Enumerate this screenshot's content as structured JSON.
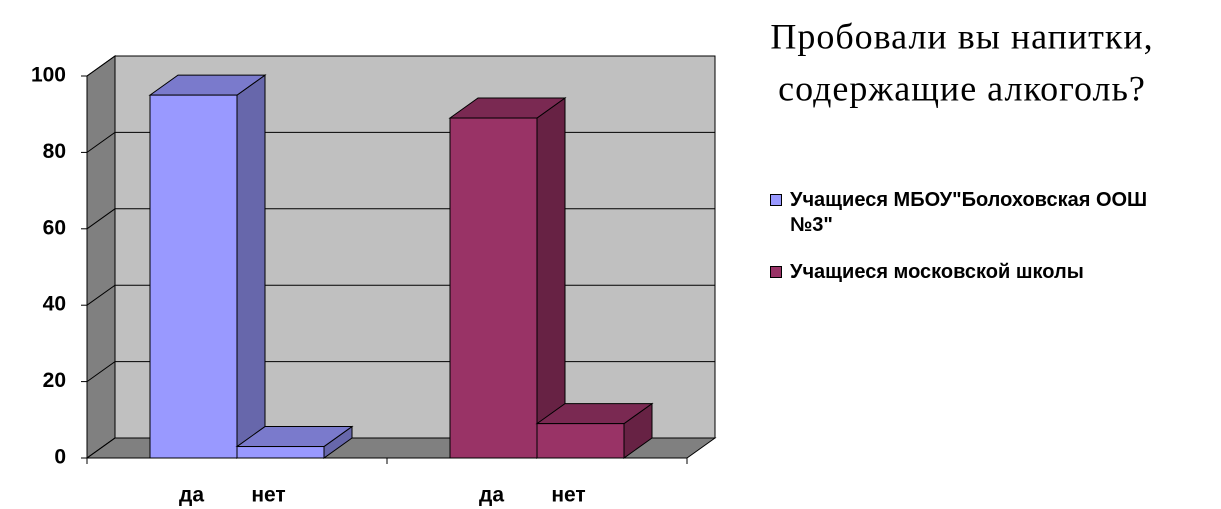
{
  "chart_data": {
    "type": "bar3d",
    "title": [
      "Пробовали вы напитки,",
      "содержащие алкоголь?"
    ],
    "categories": [
      "да",
      "нет"
    ],
    "series": [
      {
        "name": "Учащиеся МБОУ\"Болоховская ООШ №3\"",
        "color": "#9999ff",
        "values": [
          95,
          3
        ]
      },
      {
        "name": "Учащиеся московской школы",
        "color": "#993366",
        "values": [
          89,
          9
        ]
      }
    ],
    "ylim": [
      0,
      100
    ],
    "yticks": [
      0,
      20,
      40,
      60,
      80,
      100
    ],
    "grid": true,
    "legend": "right"
  }
}
